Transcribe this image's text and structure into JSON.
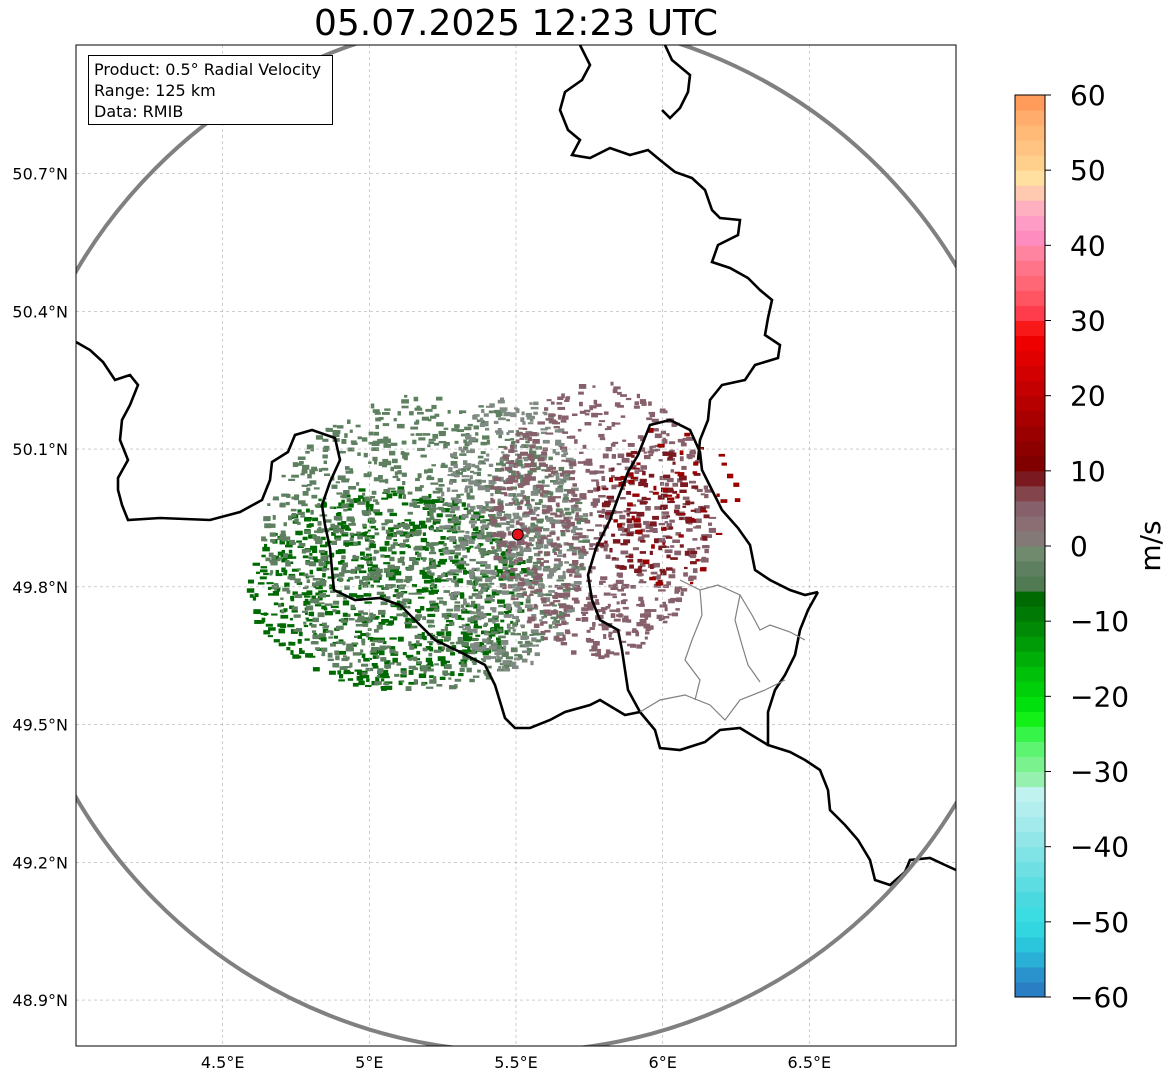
{
  "title": "05.07.2025 12:23 UTC",
  "info_box": {
    "product": "Product: 0.5° Radial Velocity",
    "range": "Range: 125 km",
    "data": "Data: RMIB"
  },
  "chart_data": {
    "type": "heatmap",
    "title": "05.07.2025 12:23 UTC",
    "projection": "PlateCarree",
    "xlim": [
      4.0,
      7.0
    ],
    "ylim": [
      48.8,
      50.98
    ],
    "x_ticks": [
      4.5,
      5.0,
      5.5,
      6.0,
      6.5
    ],
    "x_tick_labels": [
      "4.5°E",
      "5°E",
      "5.5°E",
      "6°E",
      "6.5°E"
    ],
    "y_ticks": [
      48.9,
      49.2,
      49.5,
      49.8,
      50.1,
      50.4,
      50.7
    ],
    "y_tick_labels": [
      "48.9°N",
      "49.2°N",
      "49.5°N",
      "49.8°N",
      "50.1°N",
      "50.4°N",
      "50.7°N"
    ],
    "grid": true,
    "radar_site": {
      "lon": 5.506,
      "lat": 49.914,
      "marker_color": "#e8101a"
    },
    "range_ring_km": 125,
    "range_ring_color": "#808080",
    "colorbar": {
      "label": "m/s",
      "vmin": -60,
      "vmax": 60,
      "ticks": [
        -60,
        -50,
        -40,
        -30,
        -20,
        -10,
        0,
        10,
        20,
        30,
        40,
        50,
        60
      ],
      "tick_labels": [
        "−60",
        "−50",
        "−40",
        "−30",
        "−20",
        "−10",
        "0",
        "10",
        "20",
        "30",
        "40",
        "50",
        "60"
      ],
      "segments": [
        {
          "from": -60,
          "to": -58,
          "color": "#2a7fc4"
        },
        {
          "from": -58,
          "to": -56,
          "color": "#2a92cc"
        },
        {
          "from": -56,
          "to": -54,
          "color": "#2ab0d6"
        },
        {
          "from": -54,
          "to": -52,
          "color": "#2cc6dc"
        },
        {
          "from": -52,
          "to": -50,
          "color": "#32d6e0"
        },
        {
          "from": -50,
          "to": -48,
          "color": "#3cdde2"
        },
        {
          "from": -48,
          "to": -46,
          "color": "#4ad9df"
        },
        {
          "from": -46,
          "to": -44,
          "color": "#5cdde2"
        },
        {
          "from": -44,
          "to": -42,
          "color": "#6ee0e4"
        },
        {
          "from": -42,
          "to": -40,
          "color": "#80e4e6"
        },
        {
          "from": -40,
          "to": -38,
          "color": "#92e6e8"
        },
        {
          "from": -38,
          "to": -36,
          "color": "#a2eaeb"
        },
        {
          "from": -36,
          "to": -34,
          "color": "#b2eeee"
        },
        {
          "from": -34,
          "to": -32,
          "color": "#c0f2f0"
        },
        {
          "from": -32,
          "to": -30,
          "color": "#96f0b0"
        },
        {
          "from": -30,
          "to": -28,
          "color": "#7af28e"
        },
        {
          "from": -28,
          "to": -26,
          "color": "#5cf470"
        },
        {
          "from": -26,
          "to": -24,
          "color": "#36f448"
        },
        {
          "from": -24,
          "to": -22,
          "color": "#12f018"
        },
        {
          "from": -22,
          "to": -20,
          "color": "#00e00c"
        },
        {
          "from": -20,
          "to": -18,
          "color": "#00d00a"
        },
        {
          "from": -18,
          "to": -16,
          "color": "#00c00a"
        },
        {
          "from": -16,
          "to": -14,
          "color": "#00ae08"
        },
        {
          "from": -14,
          "to": -12,
          "color": "#009c08"
        },
        {
          "from": -12,
          "to": -10,
          "color": "#008a06"
        },
        {
          "from": -10,
          "to": -8,
          "color": "#007a04"
        },
        {
          "from": -8,
          "to": -6,
          "color": "#006a02"
        },
        {
          "from": -6,
          "to": -4,
          "color": "#4f7a52"
        },
        {
          "from": -4,
          "to": -2,
          "color": "#5e8060"
        },
        {
          "from": -2,
          "to": 0,
          "color": "#6f8a6c"
        },
        {
          "from": 0,
          "to": 2,
          "color": "#837a78"
        },
        {
          "from": 2,
          "to": 4,
          "color": "#8a6e74"
        },
        {
          "from": 4,
          "to": 6,
          "color": "#86606a"
        },
        {
          "from": 6,
          "to": 8,
          "color": "#84444c"
        },
        {
          "from": 8,
          "to": 10,
          "color": "#7a1a20"
        },
        {
          "from": 10,
          "to": 12,
          "color": "#800000"
        },
        {
          "from": 12,
          "to": 14,
          "color": "#8c0000"
        },
        {
          "from": 14,
          "to": 16,
          "color": "#9a0000"
        },
        {
          "from": 16,
          "to": 18,
          "color": "#a80000"
        },
        {
          "from": 18,
          "to": 20,
          "color": "#b60000"
        },
        {
          "from": 20,
          "to": 22,
          "color": "#c40000"
        },
        {
          "from": 22,
          "to": 24,
          "color": "#d20000"
        },
        {
          "from": 24,
          "to": 26,
          "color": "#e00000"
        },
        {
          "from": 26,
          "to": 28,
          "color": "#ee0000"
        },
        {
          "from": 28,
          "to": 30,
          "color": "#f81818"
        },
        {
          "from": 30,
          "to": 32,
          "color": "#ff3c4c"
        },
        {
          "from": 32,
          "to": 34,
          "color": "#ff5462"
        },
        {
          "from": 34,
          "to": 36,
          "color": "#ff6676"
        },
        {
          "from": 36,
          "to": 38,
          "color": "#ff7488"
        },
        {
          "from": 38,
          "to": 40,
          "color": "#ff84a0"
        },
        {
          "from": 40,
          "to": 42,
          "color": "#ff8cbe"
        },
        {
          "from": 42,
          "to": 44,
          "color": "#ff9cc6"
        },
        {
          "from": 44,
          "to": 46,
          "color": "#ffb0c0"
        },
        {
          "from": 46,
          "to": 48,
          "color": "#ffcab0"
        },
        {
          "from": 48,
          "to": 50,
          "color": "#ffe0a0"
        },
        {
          "from": 50,
          "to": 52,
          "color": "#ffd08c"
        },
        {
          "from": 52,
          "to": 54,
          "color": "#ffc482"
        },
        {
          "from": 54,
          "to": 56,
          "color": "#ffba78"
        },
        {
          "from": 56,
          "to": 58,
          "color": "#ffac6c"
        },
        {
          "from": 58,
          "to": 60,
          "color": "#ff9c5c"
        }
      ]
    },
    "echo_regions": [
      {
        "name": "approaching-core",
        "value": -9,
        "color": "#006a02",
        "center": [
          5.06,
          49.8
        ],
        "radius_deg": [
          0.48,
          0.22
        ],
        "density": 0.85
      },
      {
        "name": "approaching-mid",
        "value": -4,
        "color": "#5e8060",
        "center": [
          5.18,
          49.9
        ],
        "radius_deg": [
          0.55,
          0.32
        ],
        "density": 0.8
      },
      {
        "name": "near-zero",
        "value": 0,
        "color": "#7f8a82",
        "center": [
          5.48,
          49.92
        ],
        "radius_deg": [
          0.25,
          0.3
        ],
        "density": 0.75
      },
      {
        "name": "receding-mid",
        "value": 5,
        "color": "#86606a",
        "center": [
          5.78,
          49.95
        ],
        "radius_deg": [
          0.38,
          0.3
        ],
        "density": 0.8
      },
      {
        "name": "receding-core",
        "value": 10,
        "color": "#7a1a20",
        "center": [
          5.95,
          49.96
        ],
        "radius_deg": [
          0.2,
          0.15
        ],
        "density": 0.45
      },
      {
        "name": "receding-strong",
        "value": 14,
        "color": "#9a0000",
        "center": [
          6.02,
          49.98
        ],
        "radius_deg": [
          0.24,
          0.18
        ],
        "density": 0.15
      }
    ]
  },
  "borders": {
    "country_color": "#000000",
    "admin_color": "#808080"
  }
}
